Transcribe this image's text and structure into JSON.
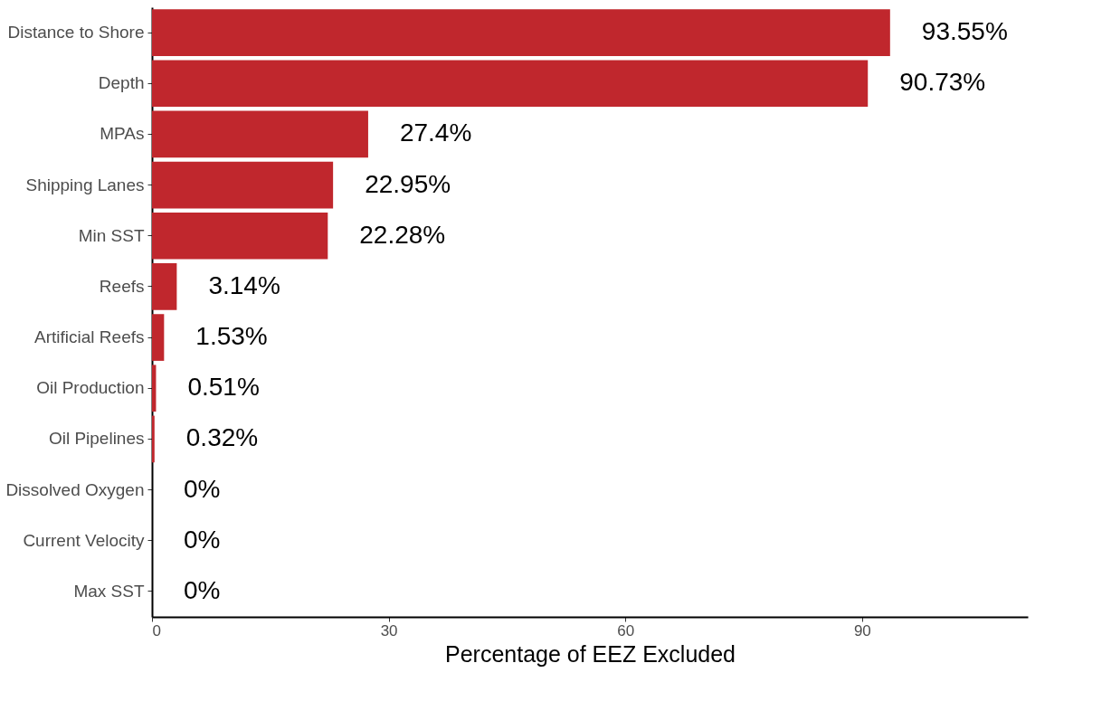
{
  "chart_data": {
    "type": "bar",
    "orientation": "horizontal",
    "xlabel": "Percentage of EEZ Excluded",
    "categories": [
      "Distance to Shore",
      "Depth",
      "MPAs",
      "Shipping Lanes",
      "Min SST",
      "Reefs",
      "Artificial Reefs",
      "Oil Production",
      "Oil Pipelines",
      "Dissolved Oxygen",
      "Current Velocity",
      "Max SST"
    ],
    "values": [
      93.55,
      90.73,
      27.4,
      22.95,
      22.28,
      3.14,
      1.53,
      0.51,
      0.32,
      0,
      0,
      0
    ],
    "value_labels": [
      "93.55%",
      "90.73%",
      "27.4%",
      "22.95%",
      "22.28%",
      "3.14%",
      "1.53%",
      "0.51%",
      "0.32%",
      "0%",
      "0%",
      "0%"
    ],
    "color": "#c0272d",
    "xlim": [
      0,
      111
    ],
    "xticks": [
      0,
      30,
      60,
      90
    ],
    "grid": false
  }
}
